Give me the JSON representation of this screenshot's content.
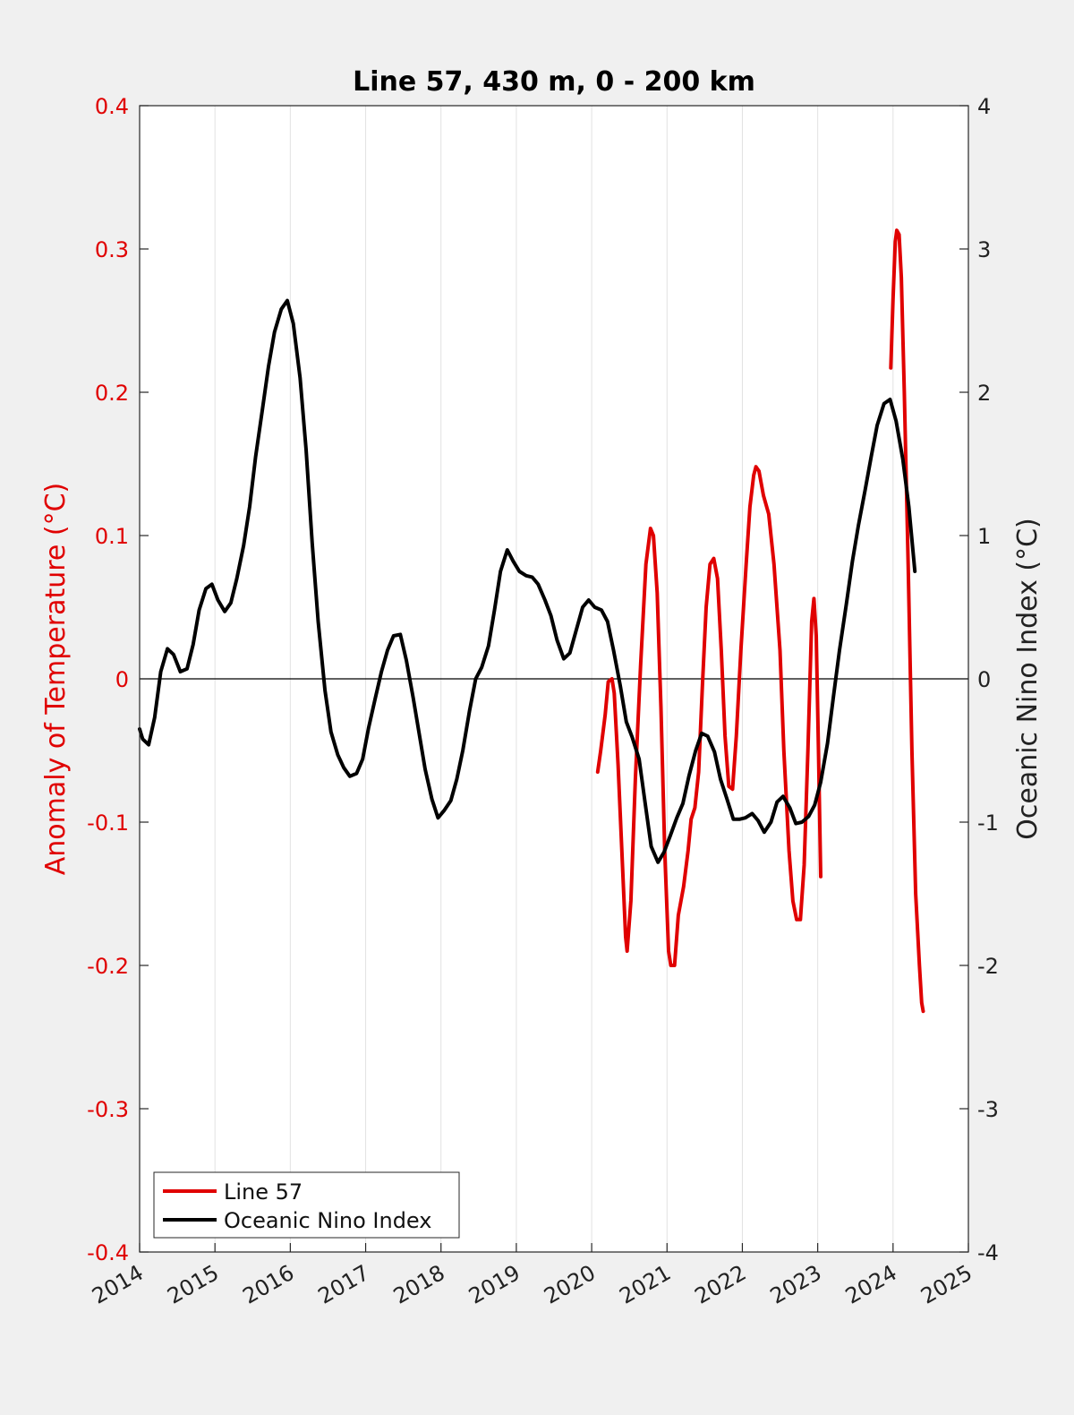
{
  "chart_data": {
    "type": "line",
    "title": "Line 57, 430 m, 0 - 200 km",
    "xlabel": "",
    "xlim": [
      2014,
      2025
    ],
    "x_ticks": [
      "2014",
      "2015",
      "2016",
      "2017",
      "2018",
      "2019",
      "2020",
      "2021",
      "2022",
      "2023",
      "2024",
      "2025"
    ],
    "y_left": {
      "label": "Anomaly of Temperature (°C)",
      "lim": [
        -0.4,
        0.4
      ],
      "ticks": [
        "0.4",
        "0.3",
        "0.2",
        "0.1",
        "0",
        "-0.1",
        "-0.2",
        "-0.3",
        "-0.4"
      ],
      "tick_values": [
        0.4,
        0.3,
        0.2,
        0.1,
        0,
        -0.1,
        -0.2,
        -0.3,
        -0.4
      ],
      "color": "#e00000"
    },
    "y_right": {
      "label": "Oceanic Nino Index (°C)",
      "lim": [
        -4,
        4
      ],
      "ticks": [
        "4",
        "3",
        "2",
        "1",
        "0",
        "-1",
        "-2",
        "-3",
        "-4"
      ],
      "tick_values": [
        4,
        3,
        2,
        1,
        0,
        -1,
        -2,
        -3,
        -4
      ],
      "color": "#222222"
    },
    "grid": "vertical",
    "zero_line": true,
    "legend": {
      "placement": "bottom-left",
      "entries": [
        "Line 57",
        "Oceanic Nino Index"
      ]
    },
    "series": [
      {
        "name": "Line 57",
        "axis": "left",
        "color": "#e00000",
        "segments": [
          [
            [
              2020.08,
              -0.065
            ],
            [
              2020.12,
              -0.05
            ],
            [
              2020.18,
              -0.025
            ],
            [
              2020.22,
              -0.002
            ],
            [
              2020.27,
              0.0
            ],
            [
              2020.3,
              -0.01
            ],
            [
              2020.35,
              -0.06
            ],
            [
              2020.4,
              -0.12
            ],
            [
              2020.45,
              -0.18
            ],
            [
              2020.47,
              -0.19
            ],
            [
              2020.52,
              -0.155
            ],
            [
              2020.58,
              -0.07
            ],
            [
              2020.65,
              0.01
            ],
            [
              2020.72,
              0.08
            ],
            [
              2020.78,
              0.105
            ],
            [
              2020.82,
              0.1
            ],
            [
              2020.87,
              0.06
            ],
            [
              2020.92,
              -0.02
            ],
            [
              2020.97,
              -0.12
            ],
            [
              2021.02,
              -0.19
            ],
            [
              2021.05,
              -0.2
            ],
            [
              2021.1,
              -0.2
            ],
            [
              2021.15,
              -0.165
            ],
            [
              2021.22,
              -0.145
            ],
            [
              2021.28,
              -0.12
            ],
            [
              2021.32,
              -0.098
            ],
            [
              2021.37,
              -0.09
            ],
            [
              2021.42,
              -0.065
            ],
            [
              2021.47,
              -0.005
            ],
            [
              2021.52,
              0.05
            ],
            [
              2021.57,
              0.08
            ],
            [
              2021.62,
              0.084
            ],
            [
              2021.67,
              0.07
            ],
            [
              2021.72,
              0.02
            ],
            [
              2021.77,
              -0.04
            ],
            [
              2021.82,
              -0.075
            ],
            [
              2021.87,
              -0.077
            ],
            [
              2021.92,
              -0.04
            ],
            [
              2021.98,
              0.02
            ],
            [
              2022.05,
              0.08
            ],
            [
              2022.1,
              0.12
            ],
            [
              2022.15,
              0.142
            ],
            [
              2022.18,
              0.148
            ],
            [
              2022.22,
              0.145
            ],
            [
              2022.28,
              0.128
            ],
            [
              2022.35,
              0.115
            ],
            [
              2022.42,
              0.08
            ],
            [
              2022.5,
              0.02
            ],
            [
              2022.55,
              -0.05
            ],
            [
              2022.62,
              -0.12
            ],
            [
              2022.67,
              -0.155
            ],
            [
              2022.72,
              -0.168
            ],
            [
              2022.77,
              -0.168
            ],
            [
              2022.82,
              -0.13
            ],
            [
              2022.87,
              -0.05
            ],
            [
              2022.92,
              0.04
            ],
            [
              2022.95,
              0.056
            ],
            [
              2022.98,
              0.03
            ],
            [
              2023.01,
              -0.05
            ],
            [
              2023.04,
              -0.138
            ]
          ],
          [
            [
              2023.97,
              0.217
            ],
            [
              2024.0,
              0.265
            ],
            [
              2024.03,
              0.305
            ],
            [
              2024.05,
              0.313
            ],
            [
              2024.08,
              0.31
            ],
            [
              2024.11,
              0.28
            ],
            [
              2024.15,
              0.2
            ],
            [
              2024.2,
              0.08
            ],
            [
              2024.25,
              -0.05
            ],
            [
              2024.3,
              -0.15
            ],
            [
              2024.35,
              -0.2
            ],
            [
              2024.38,
              -0.226
            ],
            [
              2024.4,
              -0.232
            ]
          ]
        ]
      },
      {
        "name": "Oceanic Nino Index",
        "axis": "right",
        "color": "#000000",
        "segments": [
          [
            [
              2014.0,
              -0.35
            ],
            [
              2014.04,
              -0.42
            ],
            [
              2014.12,
              -0.46
            ],
            [
              2014.2,
              -0.27
            ],
            [
              2014.28,
              0.05
            ],
            [
              2014.37,
              0.21
            ],
            [
              2014.45,
              0.17
            ],
            [
              2014.54,
              0.05
            ],
            [
              2014.63,
              0.07
            ],
            [
              2014.71,
              0.24
            ],
            [
              2014.79,
              0.48
            ],
            [
              2014.88,
              0.63
            ],
            [
              2014.96,
              0.66
            ],
            [
              2015.04,
              0.55
            ],
            [
              2015.13,
              0.47
            ],
            [
              2015.21,
              0.53
            ],
            [
              2015.29,
              0.7
            ],
            [
              2015.38,
              0.93
            ],
            [
              2015.46,
              1.2
            ],
            [
              2015.54,
              1.55
            ],
            [
              2015.63,
              1.88
            ],
            [
              2015.71,
              2.18
            ],
            [
              2015.79,
              2.42
            ],
            [
              2015.88,
              2.58
            ],
            [
              2015.96,
              2.64
            ],
            [
              2016.04,
              2.48
            ],
            [
              2016.13,
              2.1
            ],
            [
              2016.21,
              1.6
            ],
            [
              2016.29,
              0.95
            ],
            [
              2016.37,
              0.4
            ],
            [
              2016.46,
              -0.08
            ],
            [
              2016.54,
              -0.37
            ],
            [
              2016.63,
              -0.53
            ],
            [
              2016.71,
              -0.62
            ],
            [
              2016.79,
              -0.68
            ],
            [
              2016.88,
              -0.66
            ],
            [
              2016.96,
              -0.56
            ],
            [
              2017.04,
              -0.34
            ],
            [
              2017.13,
              -0.13
            ],
            [
              2017.21,
              0.05
            ],
            [
              2017.29,
              0.2
            ],
            [
              2017.37,
              0.3
            ],
            [
              2017.46,
              0.31
            ],
            [
              2017.54,
              0.13
            ],
            [
              2017.63,
              -0.13
            ],
            [
              2017.71,
              -0.38
            ],
            [
              2017.79,
              -0.63
            ],
            [
              2017.88,
              -0.84
            ],
            [
              2017.96,
              -0.97
            ],
            [
              2018.04,
              -0.92
            ],
            [
              2018.13,
              -0.85
            ],
            [
              2018.21,
              -0.7
            ],
            [
              2018.29,
              -0.5
            ],
            [
              2018.38,
              -0.22
            ],
            [
              2018.46,
              0.0
            ],
            [
              2018.54,
              0.08
            ],
            [
              2018.63,
              0.23
            ],
            [
              2018.71,
              0.48
            ],
            [
              2018.79,
              0.75
            ],
            [
              2018.88,
              0.9
            ],
            [
              2018.96,
              0.82
            ],
            [
              2019.04,
              0.75
            ],
            [
              2019.13,
              0.72
            ],
            [
              2019.21,
              0.71
            ],
            [
              2019.29,
              0.66
            ],
            [
              2019.38,
              0.55
            ],
            [
              2019.46,
              0.44
            ],
            [
              2019.54,
              0.27
            ],
            [
              2019.63,
              0.14
            ],
            [
              2019.71,
              0.18
            ],
            [
              2019.79,
              0.33
            ],
            [
              2019.88,
              0.5
            ],
            [
              2019.96,
              0.55
            ],
            [
              2020.04,
              0.5
            ],
            [
              2020.13,
              0.48
            ],
            [
              2020.21,
              0.4
            ],
            [
              2020.29,
              0.2
            ],
            [
              2020.38,
              -0.05
            ],
            [
              2020.46,
              -0.3
            ],
            [
              2020.54,
              -0.41
            ],
            [
              2020.63,
              -0.56
            ],
            [
              2020.71,
              -0.87
            ],
            [
              2020.79,
              -1.17
            ],
            [
              2020.88,
              -1.28
            ],
            [
              2020.96,
              -1.21
            ],
            [
              2021.04,
              -1.1
            ],
            [
              2021.13,
              -0.97
            ],
            [
              2021.21,
              -0.87
            ],
            [
              2021.29,
              -0.68
            ],
            [
              2021.38,
              -0.5
            ],
            [
              2021.46,
              -0.38
            ],
            [
              2021.54,
              -0.4
            ],
            [
              2021.63,
              -0.51
            ],
            [
              2021.71,
              -0.7
            ],
            [
              2021.79,
              -0.83
            ],
            [
              2021.88,
              -0.98
            ],
            [
              2021.96,
              -0.98
            ],
            [
              2022.04,
              -0.97
            ],
            [
              2022.13,
              -0.94
            ],
            [
              2022.21,
              -0.99
            ],
            [
              2022.29,
              -1.07
            ],
            [
              2022.38,
              -1.0
            ],
            [
              2022.46,
              -0.86
            ],
            [
              2022.54,
              -0.82
            ],
            [
              2022.63,
              -0.9
            ],
            [
              2022.71,
              -1.01
            ],
            [
              2022.79,
              -1.0
            ],
            [
              2022.88,
              -0.96
            ],
            [
              2022.96,
              -0.88
            ],
            [
              2023.04,
              -0.72
            ],
            [
              2023.13,
              -0.45
            ],
            [
              2023.21,
              -0.12
            ],
            [
              2023.29,
              0.2
            ],
            [
              2023.38,
              0.52
            ],
            [
              2023.46,
              0.82
            ],
            [
              2023.54,
              1.07
            ],
            [
              2023.63,
              1.32
            ],
            [
              2023.71,
              1.55
            ],
            [
              2023.79,
              1.77
            ],
            [
              2023.88,
              1.92
            ],
            [
              2023.96,
              1.95
            ],
            [
              2024.04,
              1.8
            ],
            [
              2024.13,
              1.53
            ],
            [
              2024.21,
              1.2
            ],
            [
              2024.29,
              0.75
            ]
          ]
        ]
      }
    ]
  }
}
